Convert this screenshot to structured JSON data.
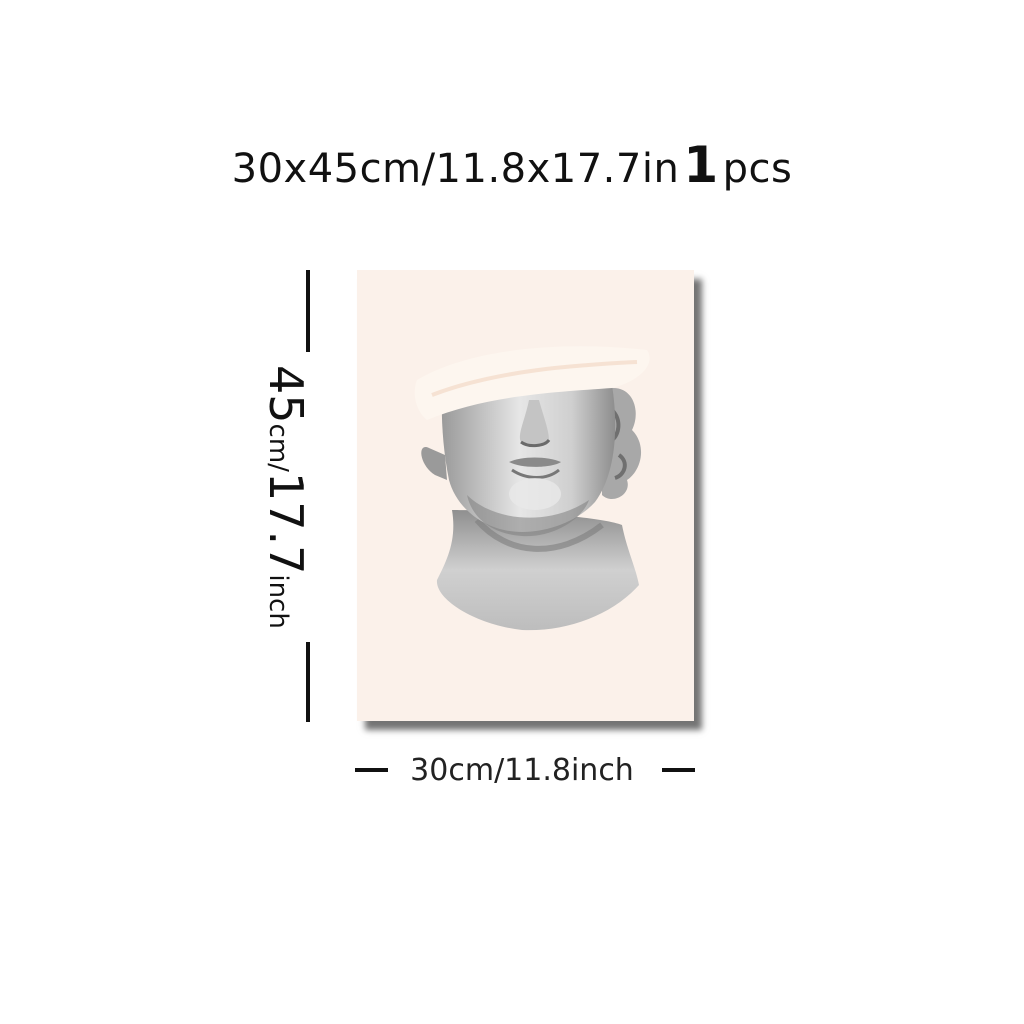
{
  "title": {
    "size_text": "30x45cm/11.8x17.7in",
    "quantity": "1",
    "quantity_unit": "pcs"
  },
  "height_label": {
    "value": "45",
    "unit": "cm/",
    "imperial": "17.7",
    "imperial_unit": "inch"
  },
  "width_label": "30cm/11.8inch",
  "artwork": {
    "subject": "classical statue head with white brush stroke over eyes",
    "background_color": "#fbf1ea",
    "statue_color": "#d9d9d9"
  }
}
